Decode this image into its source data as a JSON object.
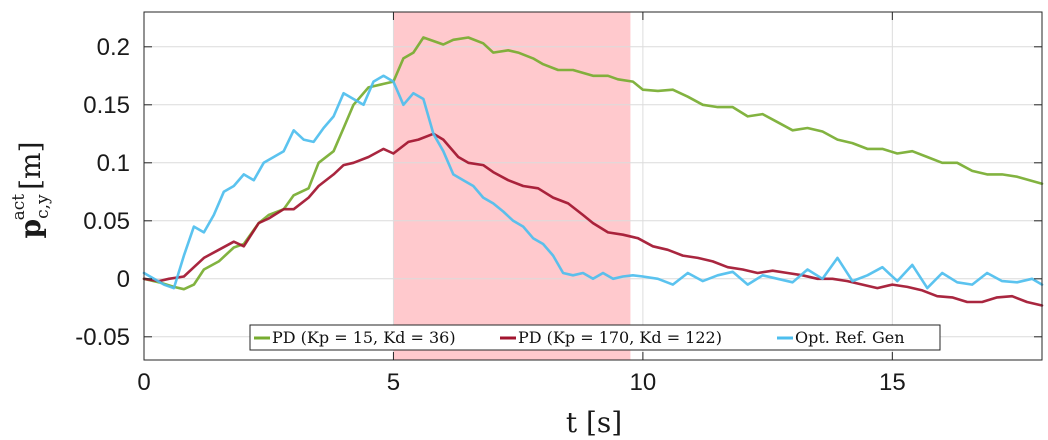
{
  "chart_data": {
    "type": "line",
    "xlabel": "t [s]",
    "ylabel": "p_{c,y}^{act} [m]",
    "ylabel_main": "p",
    "ylabel_sub": "c,y",
    "ylabel_sup": "act",
    "ylabel_unit": "[m]",
    "xlim": [
      0,
      18
    ],
    "ylim": [
      -0.07,
      0.23
    ],
    "xticks": [
      0,
      5,
      10,
      15
    ],
    "xtick_labels": [
      "0",
      "5",
      "10",
      "15"
    ],
    "yticks": [
      -0.05,
      0,
      0.05,
      0.1,
      0.15,
      0.2
    ],
    "ytick_labels": [
      "-0.05",
      "0",
      "0.05",
      "0.1",
      "0.15",
      "0.2"
    ],
    "grid": true,
    "legend_position": "bottom-center",
    "highlight_region": {
      "x_start": 5,
      "x_end": 9.75,
      "color": "#ffc6ca"
    },
    "series": [
      {
        "name": "PD (Kp = 15, Kd = 36)",
        "color": "#77ac30",
        "x": [
          0,
          0.3,
          0.6,
          0.8,
          1.0,
          1.2,
          1.5,
          1.8,
          2.0,
          2.3,
          2.5,
          2.8,
          3.0,
          3.3,
          3.5,
          3.8,
          4.0,
          4.2,
          4.5,
          4.8,
          5.0,
          5.2,
          5.4,
          5.6,
          5.8,
          6.0,
          6.2,
          6.5,
          6.8,
          7.0,
          7.3,
          7.5,
          7.8,
          8.0,
          8.3,
          8.6,
          9.0,
          9.3,
          9.5,
          9.8,
          10.0,
          10.3,
          10.6,
          10.9,
          11.2,
          11.5,
          11.8,
          12.1,
          12.4,
          12.7,
          13.0,
          13.3,
          13.6,
          13.9,
          14.2,
          14.5,
          14.8,
          15.1,
          15.4,
          15.7,
          16.0,
          16.3,
          16.6,
          16.9,
          17.2,
          17.5,
          18.0
        ],
        "y": [
          0.0,
          -0.003,
          -0.007,
          -0.009,
          -0.005,
          0.008,
          0.015,
          0.027,
          0.03,
          0.048,
          0.055,
          0.06,
          0.072,
          0.078,
          0.1,
          0.11,
          0.13,
          0.15,
          0.165,
          0.168,
          0.17,
          0.19,
          0.195,
          0.208,
          0.205,
          0.202,
          0.206,
          0.208,
          0.203,
          0.195,
          0.197,
          0.195,
          0.19,
          0.185,
          0.18,
          0.18,
          0.175,
          0.175,
          0.172,
          0.17,
          0.163,
          0.162,
          0.163,
          0.157,
          0.15,
          0.148,
          0.148,
          0.14,
          0.142,
          0.135,
          0.128,
          0.13,
          0.127,
          0.12,
          0.117,
          0.112,
          0.112,
          0.108,
          0.11,
          0.105,
          0.1,
          0.1,
          0.093,
          0.09,
          0.09,
          0.088,
          0.082
        ]
      },
      {
        "name": "PD (Kp = 170, Kd = 122)",
        "color": "#a2142f",
        "x": [
          0,
          0.3,
          0.5,
          0.8,
          1.0,
          1.2,
          1.5,
          1.8,
          2.0,
          2.3,
          2.5,
          2.8,
          3.0,
          3.3,
          3.5,
          3.8,
          4.0,
          4.2,
          4.5,
          4.8,
          5.0,
          5.3,
          5.5,
          5.8,
          6.0,
          6.3,
          6.5,
          6.8,
          7.0,
          7.3,
          7.6,
          7.9,
          8.2,
          8.5,
          8.8,
          9.0,
          9.3,
          9.6,
          9.9,
          10.2,
          10.5,
          10.8,
          11.1,
          11.4,
          11.7,
          12.0,
          12.3,
          12.6,
          12.9,
          13.2,
          13.5,
          13.8,
          14.1,
          14.4,
          14.7,
          15.0,
          15.3,
          15.6,
          15.9,
          16.2,
          16.5,
          16.8,
          17.1,
          17.4,
          17.7,
          18.0
        ],
        "y": [
          0.0,
          -0.002,
          0.0,
          0.002,
          0.01,
          0.018,
          0.025,
          0.032,
          0.028,
          0.048,
          0.052,
          0.06,
          0.06,
          0.07,
          0.08,
          0.09,
          0.098,
          0.1,
          0.105,
          0.112,
          0.108,
          0.118,
          0.12,
          0.125,
          0.12,
          0.105,
          0.1,
          0.098,
          0.092,
          0.085,
          0.08,
          0.078,
          0.07,
          0.065,
          0.055,
          0.048,
          0.04,
          0.038,
          0.035,
          0.028,
          0.025,
          0.02,
          0.018,
          0.015,
          0.01,
          0.008,
          0.005,
          0.007,
          0.005,
          0.003,
          0.0,
          0.0,
          -0.002,
          -0.005,
          -0.008,
          -0.005,
          -0.007,
          -0.01,
          -0.015,
          -0.016,
          -0.02,
          -0.02,
          -0.016,
          -0.015,
          -0.02,
          -0.023
        ]
      },
      {
        "name": "Opt. Ref. Gen",
        "color": "#4dbeee",
        "x": [
          0,
          0.2,
          0.4,
          0.6,
          0.8,
          1.0,
          1.2,
          1.4,
          1.6,
          1.8,
          2.0,
          2.2,
          2.4,
          2.6,
          2.8,
          3.0,
          3.2,
          3.4,
          3.6,
          3.8,
          4.0,
          4.2,
          4.4,
          4.6,
          4.8,
          5.0,
          5.2,
          5.4,
          5.6,
          5.8,
          6.0,
          6.2,
          6.4,
          6.6,
          6.8,
          7.0,
          7.2,
          7.4,
          7.6,
          7.8,
          8.0,
          8.2,
          8.4,
          8.6,
          8.8,
          9.0,
          9.2,
          9.4,
          9.6,
          9.8,
          10.0,
          10.3,
          10.6,
          10.9,
          11.2,
          11.5,
          11.8,
          12.1,
          12.4,
          12.7,
          13.0,
          13.3,
          13.6,
          13.9,
          14.2,
          14.5,
          14.8,
          15.1,
          15.4,
          15.7,
          16.0,
          16.3,
          16.6,
          16.9,
          17.2,
          17.5,
          17.8,
          18.0
        ],
        "y": [
          0.005,
          0.0,
          -0.005,
          -0.008,
          0.02,
          0.045,
          0.04,
          0.055,
          0.075,
          0.08,
          0.09,
          0.085,
          0.1,
          0.105,
          0.11,
          0.128,
          0.12,
          0.118,
          0.13,
          0.14,
          0.16,
          0.155,
          0.15,
          0.17,
          0.175,
          0.17,
          0.15,
          0.16,
          0.155,
          0.125,
          0.11,
          0.09,
          0.085,
          0.08,
          0.07,
          0.065,
          0.058,
          0.05,
          0.045,
          0.035,
          0.03,
          0.02,
          0.005,
          0.003,
          0.005,
          0.0,
          0.005,
          0.0,
          0.002,
          0.003,
          0.002,
          0.0,
          -0.005,
          0.005,
          -0.002,
          0.003,
          0.006,
          -0.005,
          0.003,
          0.0,
          -0.003,
          0.008,
          0.0,
          0.018,
          -0.002,
          0.003,
          0.01,
          -0.002,
          0.012,
          -0.008,
          0.005,
          -0.003,
          -0.005,
          0.005,
          -0.002,
          -0.003,
          0.0,
          -0.005
        ]
      }
    ]
  }
}
